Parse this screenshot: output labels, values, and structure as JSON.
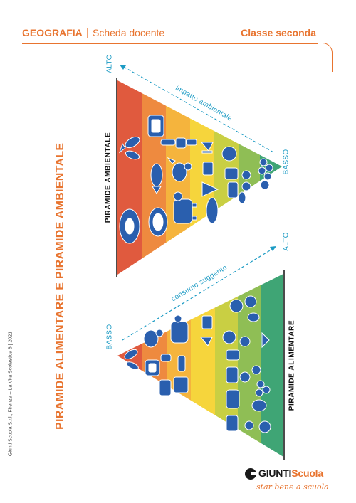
{
  "header": {
    "subject": "GEOGRAFIA",
    "separator": "|",
    "document_type": "Scheda docente",
    "class_level": "Classe seconda"
  },
  "title": "PIRAMIDE ALIMENTARE E PIRAMIDE AMBIENTALE",
  "credit": "Giunti Scuola S.r.l., Firenze – La Vita Scolastica 8 | 2021",
  "environmental_pyramid": {
    "label": "PIRAMIDE AMBIENTALE",
    "arrow_label": "impatto ambientale",
    "high": "ALTO",
    "low": "BASSO",
    "band_colors": [
      "#e05a3e",
      "#ee8a3f",
      "#f5b43d",
      "#f6d53c",
      "#c9cf43",
      "#8fbe55",
      "#3fa575"
    ]
  },
  "food_pyramid": {
    "label": "PIRAMIDE ALIMENTARE",
    "arrow_label": "consumo suggerito",
    "high": "ALTO",
    "low": "BASSO",
    "band_colors": [
      "#e05a3e",
      "#ee8a3f",
      "#f5b43d",
      "#f6d53c",
      "#c9cf43",
      "#8fbe55",
      "#3fa575"
    ]
  },
  "icons": [
    "fish-icon",
    "meat-icon",
    "cheese-icon",
    "chicken-icon",
    "cow-icon",
    "bottle-icon",
    "glass-icon",
    "bread-icon",
    "pasta-icon",
    "vegetable-icon",
    "fruit-icon",
    "grape-icon"
  ],
  "logo": {
    "brand_main": "GIUNTI",
    "brand_accent": "Scuola",
    "tagline": "star bene a scuola"
  }
}
